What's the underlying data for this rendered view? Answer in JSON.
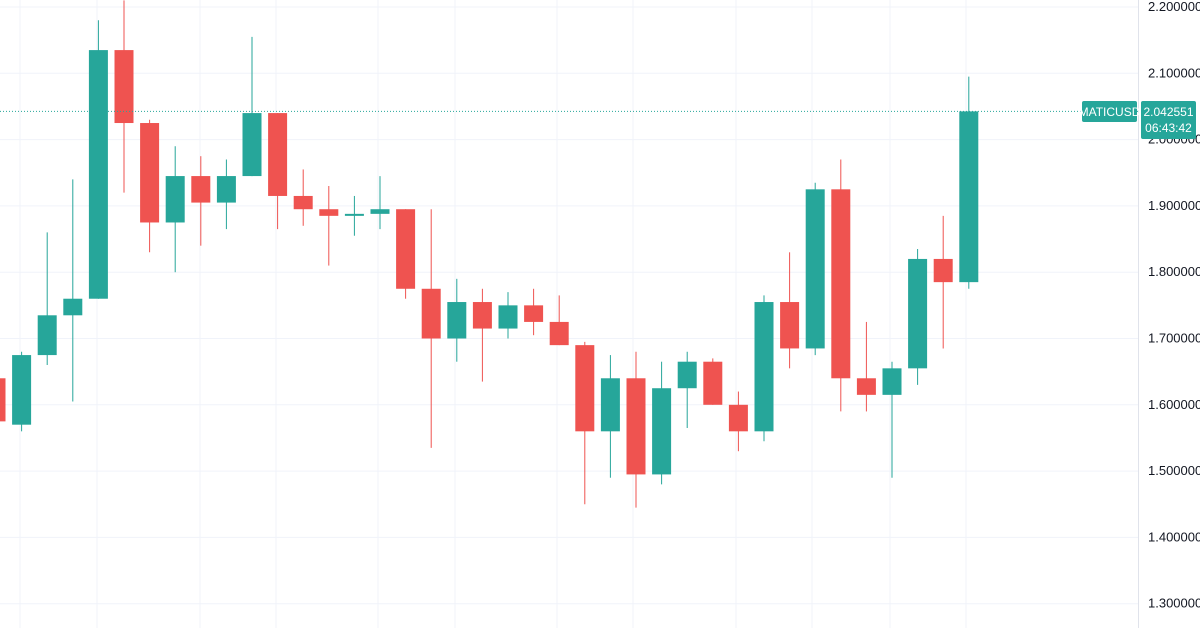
{
  "colors": {
    "up": "#26a69a",
    "down": "#ef5350",
    "grid": "#f0f3fa",
    "axis_border": "#e0e3eb",
    "current_line": "#26a69a"
  },
  "chart_data": {
    "type": "candlestick",
    "symbol": "MATICUSD",
    "current_price": 2.042551,
    "current_price_label": "2.042551",
    "countdown_label": "06:43:42",
    "ylim": [
      1.28,
      2.205
    ],
    "y_ticks": [
      {
        "value": 2.2,
        "label": "2.200000"
      },
      {
        "value": 2.1,
        "label": "2.100000"
      },
      {
        "value": 2.0,
        "label": "2.000000"
      },
      {
        "value": 1.9,
        "label": "1.900000"
      },
      {
        "value": 1.8,
        "label": "1.800000"
      },
      {
        "value": 1.7,
        "label": "1.700000"
      },
      {
        "value": 1.6,
        "label": "1.600000"
      },
      {
        "value": 1.5,
        "label": "1.500000"
      },
      {
        "value": 1.4,
        "label": "1.400000"
      },
      {
        "value": 1.3,
        "label": "1.300000"
      }
    ],
    "grid": true,
    "candles": [
      {
        "o": 1.64,
        "h": 1.64,
        "l": 1.57,
        "c": 1.575
      },
      {
        "o": 1.57,
        "h": 1.68,
        "l": 1.56,
        "c": 1.675
      },
      {
        "o": 1.675,
        "h": 1.86,
        "l": 1.66,
        "c": 1.735
      },
      {
        "o": 1.735,
        "h": 1.94,
        "l": 1.605,
        "c": 1.76
      },
      {
        "o": 1.76,
        "h": 2.18,
        "l": 1.76,
        "c": 2.135
      },
      {
        "o": 2.135,
        "h": 2.21,
        "l": 1.92,
        "c": 2.025
      },
      {
        "o": 2.025,
        "h": 2.03,
        "l": 1.83,
        "c": 1.875
      },
      {
        "o": 1.875,
        "h": 1.99,
        "l": 1.8,
        "c": 1.945
      },
      {
        "o": 1.945,
        "h": 1.975,
        "l": 1.84,
        "c": 1.905
      },
      {
        "o": 1.905,
        "h": 1.97,
        "l": 1.865,
        "c": 1.945
      },
      {
        "o": 1.945,
        "h": 2.155,
        "l": 1.945,
        "c": 2.04
      },
      {
        "o": 2.04,
        "h": 2.04,
        "l": 1.865,
        "c": 1.915
      },
      {
        "o": 1.915,
        "h": 1.955,
        "l": 1.87,
        "c": 1.895
      },
      {
        "o": 1.895,
        "h": 1.93,
        "l": 1.81,
        "c": 1.885
      },
      {
        "o": 1.885,
        "h": 1.915,
        "l": 1.855,
        "c": 1.888
      },
      {
        "o": 1.888,
        "h": 1.945,
        "l": 1.865,
        "c": 1.895
      },
      {
        "o": 1.895,
        "h": 1.895,
        "l": 1.76,
        "c": 1.775
      },
      {
        "o": 1.775,
        "h": 1.895,
        "l": 1.535,
        "c": 1.7
      },
      {
        "o": 1.7,
        "h": 1.79,
        "l": 1.665,
        "c": 1.755
      },
      {
        "o": 1.755,
        "h": 1.775,
        "l": 1.635,
        "c": 1.715
      },
      {
        "o": 1.715,
        "h": 1.77,
        "l": 1.7,
        "c": 1.75
      },
      {
        "o": 1.75,
        "h": 1.775,
        "l": 1.705,
        "c": 1.725
      },
      {
        "o": 1.725,
        "h": 1.765,
        "l": 1.69,
        "c": 1.69
      },
      {
        "o": 1.69,
        "h": 1.695,
        "l": 1.45,
        "c": 1.56
      },
      {
        "o": 1.56,
        "h": 1.675,
        "l": 1.49,
        "c": 1.64
      },
      {
        "o": 1.64,
        "h": 1.68,
        "l": 1.445,
        "c": 1.495
      },
      {
        "o": 1.495,
        "h": 1.665,
        "l": 1.48,
        "c": 1.625
      },
      {
        "o": 1.625,
        "h": 1.68,
        "l": 1.565,
        "c": 1.665
      },
      {
        "o": 1.665,
        "h": 1.67,
        "l": 1.6,
        "c": 1.6
      },
      {
        "o": 1.6,
        "h": 1.62,
        "l": 1.53,
        "c": 1.56
      },
      {
        "o": 1.56,
        "h": 1.765,
        "l": 1.545,
        "c": 1.755
      },
      {
        "o": 1.755,
        "h": 1.83,
        "l": 1.655,
        "c": 1.685
      },
      {
        "o": 1.685,
        "h": 1.935,
        "l": 1.675,
        "c": 1.925
      },
      {
        "o": 1.925,
        "h": 1.97,
        "l": 1.59,
        "c": 1.64
      },
      {
        "o": 1.64,
        "h": 1.725,
        "l": 1.59,
        "c": 1.615
      },
      {
        "o": 1.615,
        "h": 1.665,
        "l": 1.49,
        "c": 1.655
      },
      {
        "o": 1.655,
        "h": 1.835,
        "l": 1.63,
        "c": 1.82
      },
      {
        "o": 1.82,
        "h": 1.885,
        "l": 1.685,
        "c": 1.785
      },
      {
        "o": 1.785,
        "h": 2.095,
        "l": 1.775,
        "c": 2.042551
      }
    ]
  }
}
